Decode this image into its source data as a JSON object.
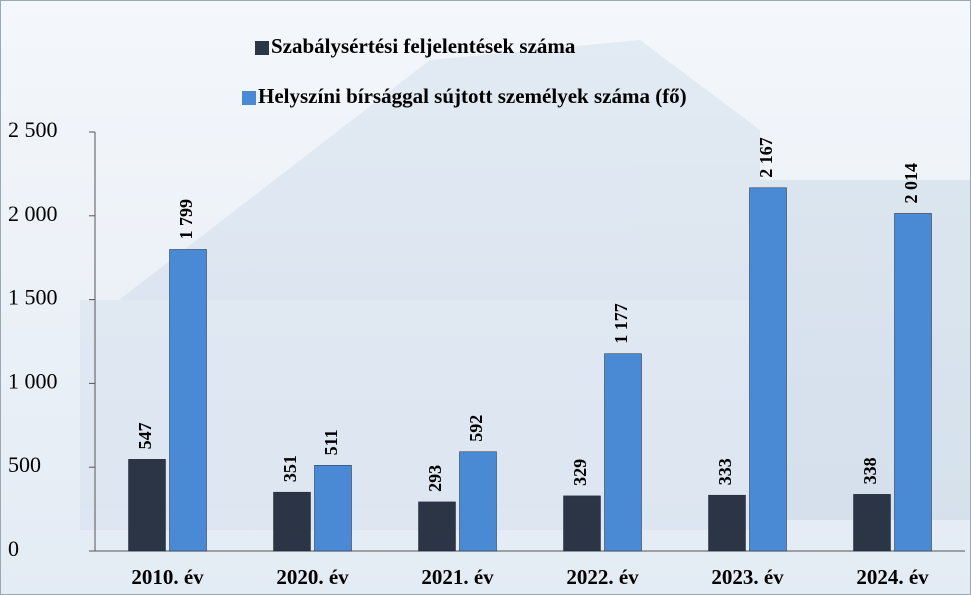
{
  "chart_data": {
    "type": "bar",
    "categories": [
      "2010. év",
      "2020. év",
      "2021. év",
      "2022. év",
      "2023. év",
      "2024. év"
    ],
    "series": [
      {
        "name": "Szabálysértési feljelentések száma",
        "color": "#2b3545",
        "values": [
          547,
          351,
          293,
          329,
          333,
          338
        ]
      },
      {
        "name": "Helyszíni bírsággal sújtott személyek száma (fő)",
        "color": "#4a8ad4",
        "values": [
          1799,
          511,
          592,
          1177,
          2167,
          2014
        ],
        "value_labels": [
          "1 799",
          "511",
          "592",
          "1 177",
          "2 167",
          "2 014"
        ]
      }
    ],
    "ylim": [
      0,
      2500
    ],
    "yticks": [
      0,
      500,
      {
        "value": 1000,
        "label": "1 000"
      },
      {
        "value": 1500,
        "label": "1 500"
      },
      {
        "value": 2000,
        "label": "2 000"
      },
      {
        "value": 2500,
        "label": "2 500"
      }
    ],
    "legend": "top"
  }
}
